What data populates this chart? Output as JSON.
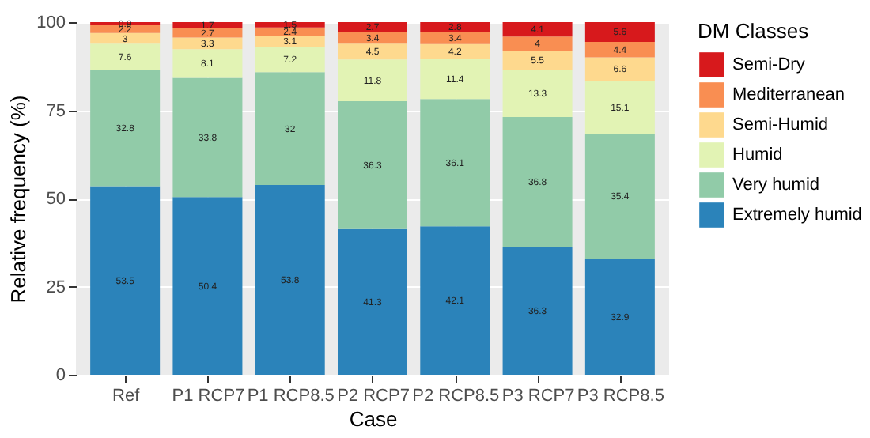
{
  "chart_data": {
    "type": "bar",
    "stacked": true,
    "xlabel": "Case",
    "ylabel": "Relative frequency (%)",
    "legend_title": "DM Classes",
    "legend": "right",
    "categories": [
      "Ref",
      "P1 RCP7",
      "P1 RCP8.5",
      "P2 RCP7",
      "P2 RCP8.5",
      "P3 RCP7",
      "P3 RCP8.5"
    ],
    "series": [
      {
        "name": "Extremely humid",
        "color": "#2b83ba",
        "values": [
          53.5,
          50.4,
          53.8,
          41.3,
          42.1,
          36.3,
          32.9
        ]
      },
      {
        "name": "Very humid",
        "color": "#91cba8",
        "values": [
          32.8,
          33.8,
          32,
          36.3,
          36.1,
          36.8,
          35.4
        ]
      },
      {
        "name": "Humid",
        "color": "#e2f3b4",
        "values": [
          7.6,
          8.1,
          7.2,
          11.8,
          11.4,
          13.3,
          15.1
        ]
      },
      {
        "name": "Semi-Humid",
        "color": "#fed98e",
        "values": [
          3,
          3.3,
          3.1,
          4.5,
          4.2,
          5.5,
          6.6
        ]
      },
      {
        "name": "Mediterranean",
        "color": "#f98e52",
        "values": [
          2.2,
          2.7,
          2.4,
          3.4,
          3.4,
          4,
          4.4
        ]
      },
      {
        "name": "Semi-Dry",
        "color": "#d7191c",
        "values": [
          0.9,
          1.7,
          1.5,
          2.7,
          2.8,
          4.1,
          5.6
        ]
      }
    ],
    "ylim": [
      0,
      100
    ],
    "yticks": [
      0,
      25,
      50,
      75,
      100
    ],
    "grid": true,
    "data_labels": true
  }
}
